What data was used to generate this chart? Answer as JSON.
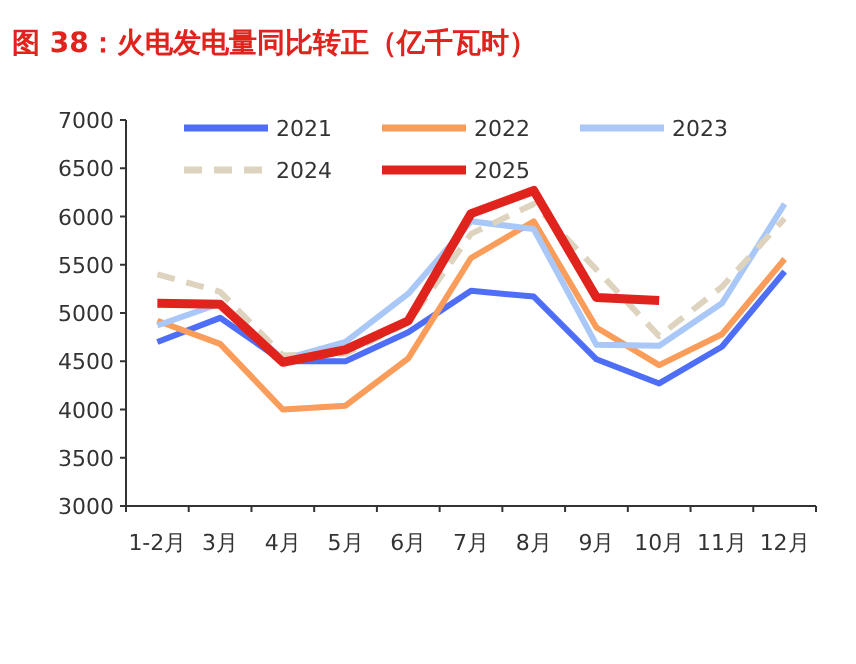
{
  "chart_data": {
    "type": "line",
    "title": "图 38：火电发电量同比转正（亿千瓦时）",
    "categories": [
      "1-2月",
      "3月",
      "4月",
      "5月",
      "6月",
      "7月",
      "8月",
      "9月",
      "10月",
      "11月",
      "12月"
    ],
    "series": [
      {
        "name": "2021",
        "color": "#4f6ef7",
        "values": [
          4700,
          4950,
          4500,
          4500,
          4800,
          5230,
          5170,
          4520,
          4270,
          4650,
          5430
        ]
      },
      {
        "name": "2022",
        "color": "#fa9c5a",
        "values": [
          4920,
          4680,
          4000,
          4040,
          4530,
          5570,
          5950,
          4850,
          4460,
          4780,
          5560
        ]
      },
      {
        "name": "2023",
        "color": "#a9c8f7",
        "values": [
          4870,
          5100,
          4520,
          4700,
          5200,
          5950,
          5870,
          4670,
          4660,
          5100,
          6130
        ]
      },
      {
        "name": "2024",
        "color": "#ddd3be",
        "line_style": "dashed",
        "values": [
          5400,
          5220,
          4560,
          4580,
          4900,
          5820,
          6130,
          5450,
          4760,
          5270,
          5980
        ]
      },
      {
        "name": "2025",
        "color": "#e0231c",
        "values": [
          5100,
          5090,
          4490,
          4620,
          4920,
          6030,
          6270,
          5160,
          5130,
          null,
          null
        ]
      }
    ],
    "ylim": [
      3000,
      7000
    ],
    "yticks": [
      3000,
      3500,
      4000,
      4500,
      5000,
      5500,
      6000,
      6500,
      7000
    ],
    "grid": false,
    "legend": "top",
    "marker": "none"
  }
}
